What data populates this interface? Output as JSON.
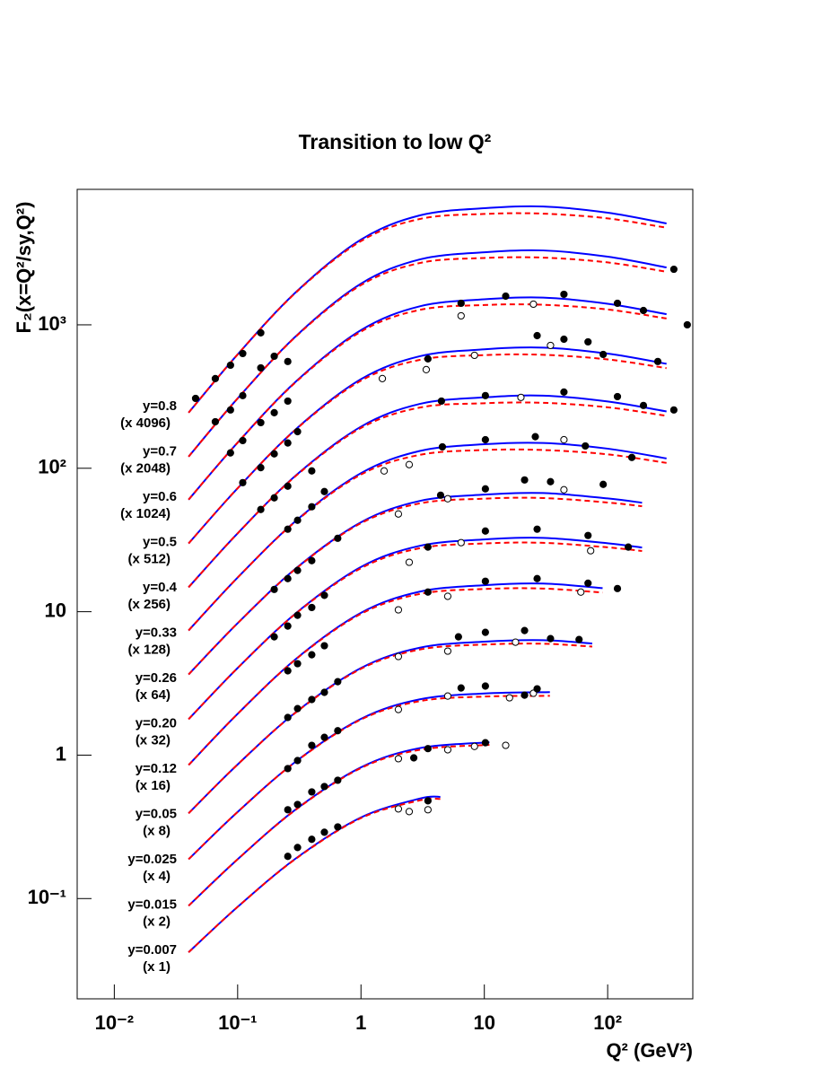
{
  "chart_data": {
    "type": "line",
    "title": "Transition to low Q²",
    "x_label": "Q² (GeV²)",
    "y_label": "F₂(x=Q²/sy,Q²)",
    "xscale": "log",
    "yscale": "log",
    "xlim": [
      0.005,
      490
    ],
    "ylim": [
      0.02,
      8800
    ],
    "xticks": [
      {
        "value": 0.01,
        "label": "10⁻²"
      },
      {
        "value": 0.1,
        "label": "10⁻¹"
      },
      1,
      10,
      {
        "value": 100,
        "label": "10²"
      }
    ],
    "yticks": [
      {
        "value": 0.1,
        "label": "10⁻¹"
      },
      1,
      10,
      {
        "value": 100,
        "label": "10²"
      },
      {
        "value": 1000,
        "label": "10³"
      }
    ],
    "solid_color": "#0000ff",
    "dashed_color": "#ff0000",
    "marker_color": "#000000",
    "series": [
      {
        "name": "y=0.8",
        "scale": "(x 4096)",
        "x": [
          0.04,
          0.1,
          0.3,
          1,
          3,
          10,
          30,
          100,
          300
        ],
        "values": [
          244,
          622,
          1706,
          3926,
          5794,
          6501,
          6683,
          6053,
          5093
        ],
        "dashed_values": [
          244,
          622,
          1694,
          3837,
          5470,
          5929,
          5957,
          5521,
          4753
        ],
        "data": {
          "x": [
            0.0456,
            0.0659,
            0.0875,
            0.11,
            0.154
          ],
          "values": [
            307,
            422,
            523,
            631,
            879
          ]
        }
      },
      {
        "name": "y=0.7",
        "scale": "(x 2048)",
        "x": [
          0.04,
          0.1,
          0.3,
          1,
          3,
          10,
          30,
          100,
          300
        ],
        "values": [
          120.5,
          307,
          841,
          1936,
          2858,
          3206,
          3301,
          2985,
          2512
        ],
        "dashed_values": [
          120.5,
          307,
          836,
          1892,
          2698,
          2924,
          2941,
          2723,
          2344
        ],
        "data": {
          "x": [
            0.0659,
            0.0875,
            0.11,
            0.154,
            0.198,
            0.255,
            344
          ],
          "values": [
            211,
            255,
            321,
            501,
            604,
            555,
            2440
          ]
        }
      },
      {
        "name": "y=0.6",
        "scale": "(x 1024)",
        "x": [
          0.04,
          0.1,
          0.3,
          1,
          3,
          10,
          30,
          100,
          300
        ],
        "values": [
          60.4,
          151,
          406,
          918,
          1346,
          1507,
          1549,
          1403,
          1186
        ],
        "dashed_values": [
          60.4,
          151,
          403,
          897,
          1271,
          1374,
          1380,
          1279,
          1107
        ],
        "data": {
          "x": [
            0.0875,
            0.11,
            0.154,
            0.198,
            0.255,
            6.48,
            14.9,
            44.2,
            120,
            195,
            442
          ],
          "values": [
            128,
            156,
            208,
            244,
            294,
            1413,
            1585,
            1632,
            1413,
            1259,
            1000
          ]
        },
        "open_data": {
          "x": [
            6.48,
            25
          ],
          "values": [
            1155,
            1393
          ]
        }
      },
      {
        "name": "y=0.5",
        "scale": "(x 512)",
        "x": [
          0.04,
          0.1,
          0.3,
          1,
          3,
          10,
          30,
          100,
          300
        ],
        "values": [
          29.9,
          72.6,
          189,
          418,
          604,
          675,
          693,
          630,
          535
        ],
        "dashed_values": [
          29.9,
          72.6,
          188,
          408,
          570,
          615,
          618,
          574,
          499
        ],
        "data": {
          "x": [
            0.11,
            0.154,
            0.198,
            0.255,
            0.306,
            3.49,
            26.8,
            44.2,
            69.3,
            92,
            255
          ],
          "values": [
            79.4,
            101,
            126,
            150,
            180,
            579,
            841,
            794,
            761,
            622,
            555
          ]
        },
        "open_data": {
          "x": [
            3.38,
            8.32,
            34.4
          ],
          "values": [
            487,
            613,
            718
          ]
        }
      },
      {
        "name": "y=0.4",
        "scale": "(x 256)",
        "x": [
          0.04,
          0.1,
          0.3,
          1,
          3,
          10,
          30,
          100,
          300
        ],
        "values": [
          14.8,
          35.2,
          89.9,
          195,
          281,
          312,
          321,
          292,
          249
        ],
        "dashed_values": [
          14.8,
          35.2,
          89.3,
          191,
          265,
          284,
          286,
          266,
          232
        ],
        "data": {
          "x": [
            0.154,
            0.198,
            0.255,
            0.399,
            4.49,
            10.2,
            44.2,
            120,
            195,
            344
          ],
          "values": [
            51.6,
            62.2,
            75,
            95.8,
            294,
            321,
            340,
            316,
            274,
            255
          ]
        },
        "open_data": {
          "x": [
            1.49,
            19.8
          ],
          "values": [
            422,
            312
          ]
        }
      },
      {
        "name": "y=0.33",
        "scale": "(x 128)",
        "x": [
          0.04,
          0.1,
          0.3,
          1,
          3,
          10,
          30,
          100,
          300
        ],
        "values": [
          7.4,
          17.3,
          43.4,
          92.5,
          132,
          147,
          150,
          137,
          117
        ],
        "dashed_values": [
          7.4,
          17.3,
          43.1,
          90.4,
          124,
          134,
          134,
          125,
          109
        ],
        "data": {
          "x": [
            0.255,
            0.306,
            0.399,
            0.505,
            4.57,
            10.2,
            25.9,
            65.9,
            157
          ],
          "values": [
            37.6,
            43.4,
            53.9,
            68.8,
            141,
            158,
            166,
            143,
            119
          ]
        },
        "open_data": {
          "x": [
            1.54,
            2.46,
            44.2
          ],
          "values": [
            95.8,
            106,
            158
          ]
        }
      },
      {
        "name": "y=0.26",
        "scale": "(x 64)",
        "x": [
          0.04,
          0.1,
          0.3,
          1,
          3,
          10,
          30,
          100,
          190
        ],
        "values": [
          3.65,
          8.31,
          20.2,
          42,
          59.2,
          65.5,
          67.2,
          61.6,
          57.5
        ],
        "dashed_values": [
          3.65,
          8.31,
          20.1,
          41.4,
          56.9,
          61.4,
          62,
          57.7,
          54.3
        ],
        "data": {
          "x": [
            0.198,
            0.255,
            0.306,
            0.399,
            0.648,
            4.42,
            10.2,
            21.2,
            34.4,
            92
          ],
          "values": [
            14.3,
            17,
            19.4,
            22.7,
            32.5,
            64.9,
            71.8,
            82.9,
            80.6,
            77.2
          ]
        },
        "open_data": {
          "x": [
            2.01,
            5.05,
            44.2
          ],
          "values": [
            48,
            61.3,
            70.8
          ]
        }
      },
      {
        "name": "y=0.20",
        "scale": "(x 32)",
        "x": [
          0.04,
          0.1,
          0.3,
          1,
          3,
          10,
          30,
          100,
          190
        ],
        "values": [
          1.78,
          4.05,
          9.84,
          20.5,
          28.8,
          31.9,
          32.7,
          30,
          28
        ],
        "dashed_values": [
          1.78,
          4.05,
          9.79,
          20.1,
          27.7,
          29.9,
          30.2,
          28.1,
          26.5
        ],
        "data": {
          "x": [
            0.198,
            0.255,
            0.306,
            0.399,
            0.505,
            3.49,
            10.2,
            26.8,
            69.3,
            147
          ],
          "values": [
            6.68,
            7.94,
            9.44,
            10.7,
            13,
            28.2,
            36.5,
            37.6,
            34,
            28.2
          ]
        },
        "open_data": {
          "x": [
            2.46,
            6.48,
            72.8
          ],
          "values": [
            22.1,
            30.3,
            26.6
          ]
        }
      },
      {
        "name": "y=0.12",
        "scale": "(x 16)",
        "x": [
          0.04,
          0.1,
          0.3,
          1,
          3,
          10,
          30,
          91
        ],
        "values": [
          0.853,
          1.94,
          4.72,
          9.82,
          13.8,
          15.3,
          15.7,
          14.6
        ],
        "dashed_values": [
          0.853,
          1.94,
          4.7,
          9.66,
          13.3,
          14.4,
          14.5,
          13.6
        ],
        "data": {
          "x": [
            0.255,
            0.306,
            0.399,
            0.505,
            3.49,
            10.2,
            26.8,
            69.3,
            120
          ],
          "values": [
            3.87,
            4.34,
            5.01,
            5.79,
            13.7,
            16.3,
            17,
            15.8,
            14.5
          ]
        },
        "open_data": {
          "x": [
            2.01,
            5.05,
            60.6
          ],
          "values": [
            10.3,
            12.8,
            13.7
          ]
        }
      },
      {
        "name": "y=0.05",
        "scale": "(x 8)",
        "x": [
          0.04,
          0.1,
          0.3,
          1,
          3,
          10,
          30,
          75
        ],
        "values": [
          0.393,
          0.861,
          2.01,
          4.05,
          5.61,
          6.18,
          6.33,
          6
        ],
        "dashed_values": [
          0.393,
          0.861,
          2,
          4,
          5.45,
          5.9,
          5.98,
          5.71
        ],
        "data": {
          "x": [
            0.255,
            0.306,
            0.399,
            0.505,
            0.648,
            6.17,
            10.2,
            21.2,
            34.4,
            58.6
          ],
          "values": [
            1.83,
            2.11,
            2.44,
            2.74,
            3.25,
            6.68,
            7.18,
            7.39,
            6.49,
            6.4
          ]
        },
        "open_data": {
          "x": [
            2.01,
            5.05,
            17.9
          ],
          "values": [
            4.87,
            5.31,
            6.13
          ]
        }
      },
      {
        "name": "y=0.025",
        "scale": "(x 4)",
        "x": [
          0.04,
          0.1,
          0.3,
          1,
          3,
          10,
          34
        ],
        "values": [
          0.188,
          0.402,
          0.91,
          1.79,
          2.45,
          2.69,
          2.75
        ],
        "dashed_values": [
          0.188,
          0.402,
          0.907,
          1.77,
          2.38,
          2.56,
          2.59
        ],
        "data": {
          "x": [
            0.255,
            0.306,
            0.399,
            0.505,
            0.648,
            6.48,
            10.2,
            21.2,
            26.8
          ],
          "values": [
            0.806,
            0.917,
            1.17,
            1.33,
            1.48,
            2.94,
            3.03,
            2.62,
            2.9
          ]
        },
        "open_data": {
          "x": [
            2.01,
            5.05,
            16,
            25
          ],
          "values": [
            2.08,
            2.58,
            2.51,
            2.7
          ]
        }
      },
      {
        "name": "y=0.015",
        "scale": "(x 2)",
        "x": [
          0.04,
          0.1,
          0.3,
          1,
          3,
          11
        ],
        "values": [
          0.0891,
          0.188,
          0.422,
          0.822,
          1.12,
          1.23
        ],
        "dashed_values": [
          0.0891,
          0.188,
          0.42,
          0.813,
          1.09,
          1.18
        ],
        "data": {
          "x": [
            0.255,
            0.306,
            0.399,
            0.505,
            0.648,
            2.68,
            3.49,
            10.2
          ],
          "values": [
            0.416,
            0.453,
            0.554,
            0.604,
            0.668,
            0.957,
            1.11,
            1.22
          ]
        },
        "open_data": {
          "x": [
            2.01,
            5.05,
            8.32,
            14.9
          ],
          "values": [
            0.944,
            1.09,
            1.15,
            1.17
          ]
        }
      },
      {
        "name": "y=0.007",
        "scale": "(x 1)",
        "x": [
          0.04,
          0.1,
          0.3,
          1,
          3,
          4.4
        ],
        "values": [
          0.0422,
          0.0875,
          0.192,
          0.368,
          0.498,
          0.512
        ],
        "dashed_values": [
          0.0422,
          0.0875,
          0.191,
          0.364,
          0.484,
          0.495
        ],
        "data": {
          "x": [
            0.255,
            0.306,
            0.399,
            0.505,
            0.648,
            3.49
          ],
          "values": [
            0.197,
            0.227,
            0.259,
            0.29,
            0.316,
            0.48
          ]
        },
        "open_data": {
          "x": [
            2.01,
            2.46,
            3.49
          ],
          "values": [
            0.422,
            0.404,
            0.416
          ]
        }
      }
    ]
  }
}
